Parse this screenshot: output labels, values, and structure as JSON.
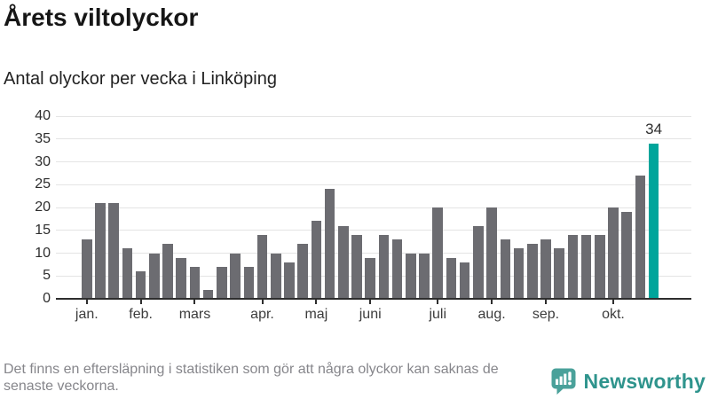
{
  "title": "Årets viltolyckor",
  "subtitle": "Antal olyckor per vecka i Linköping",
  "footer": {
    "lines": [
      "Det finns en eftersläpning i statistiken som gör att några olyckor kan saknas de",
      "senaste veckorna."
    ]
  },
  "logo": {
    "name": "Newsworthy",
    "badge_color": "#4aa19a",
    "text_color": "#2f948d"
  },
  "colors": {
    "bar": "#6c6c71",
    "highlight": "#00a59b",
    "gridline": "#e4e4e4",
    "axis": "#2e2e2e",
    "value_label": "#2e2e2e",
    "footnote": "#86868b"
  },
  "chart_data": {
    "type": "bar",
    "title": "Årets viltolyckor",
    "subtitle": "Antal olyckor per vecka i Linköping",
    "x_unit": "vecka (week 1–43)",
    "values": [
      13,
      21,
      21,
      11,
      6,
      10,
      12,
      9,
      7,
      2,
      7,
      10,
      7,
      14,
      10,
      8,
      12,
      17,
      24,
      16,
      14,
      9,
      14,
      13,
      10,
      10,
      20,
      9,
      8,
      16,
      20,
      13,
      11,
      12,
      13,
      11,
      14,
      14,
      14,
      20,
      19,
      27,
      34
    ],
    "highlight_index": 42,
    "highlight_value_label": "34",
    "ylim": [
      0,
      40
    ],
    "yticks": [
      0,
      5,
      10,
      15,
      20,
      25,
      30,
      35,
      40
    ],
    "month_ticks": [
      {
        "label": "jan.",
        "bar": 0
      },
      {
        "label": "feb.",
        "bar": 4
      },
      {
        "label": "mars",
        "bar": 8
      },
      {
        "label": "apr.",
        "bar": 13
      },
      {
        "label": "maj",
        "bar": 17
      },
      {
        "label": "juni",
        "bar": 21
      },
      {
        "label": "juli",
        "bar": 26
      },
      {
        "label": "aug.",
        "bar": 30
      },
      {
        "label": "sep.",
        "bar": 34
      },
      {
        "label": "okt.",
        "bar": 39
      }
    ],
    "grid": true,
    "legend": false,
    "bar_color": "#6c6c71",
    "highlight_color": "#00a59b"
  }
}
